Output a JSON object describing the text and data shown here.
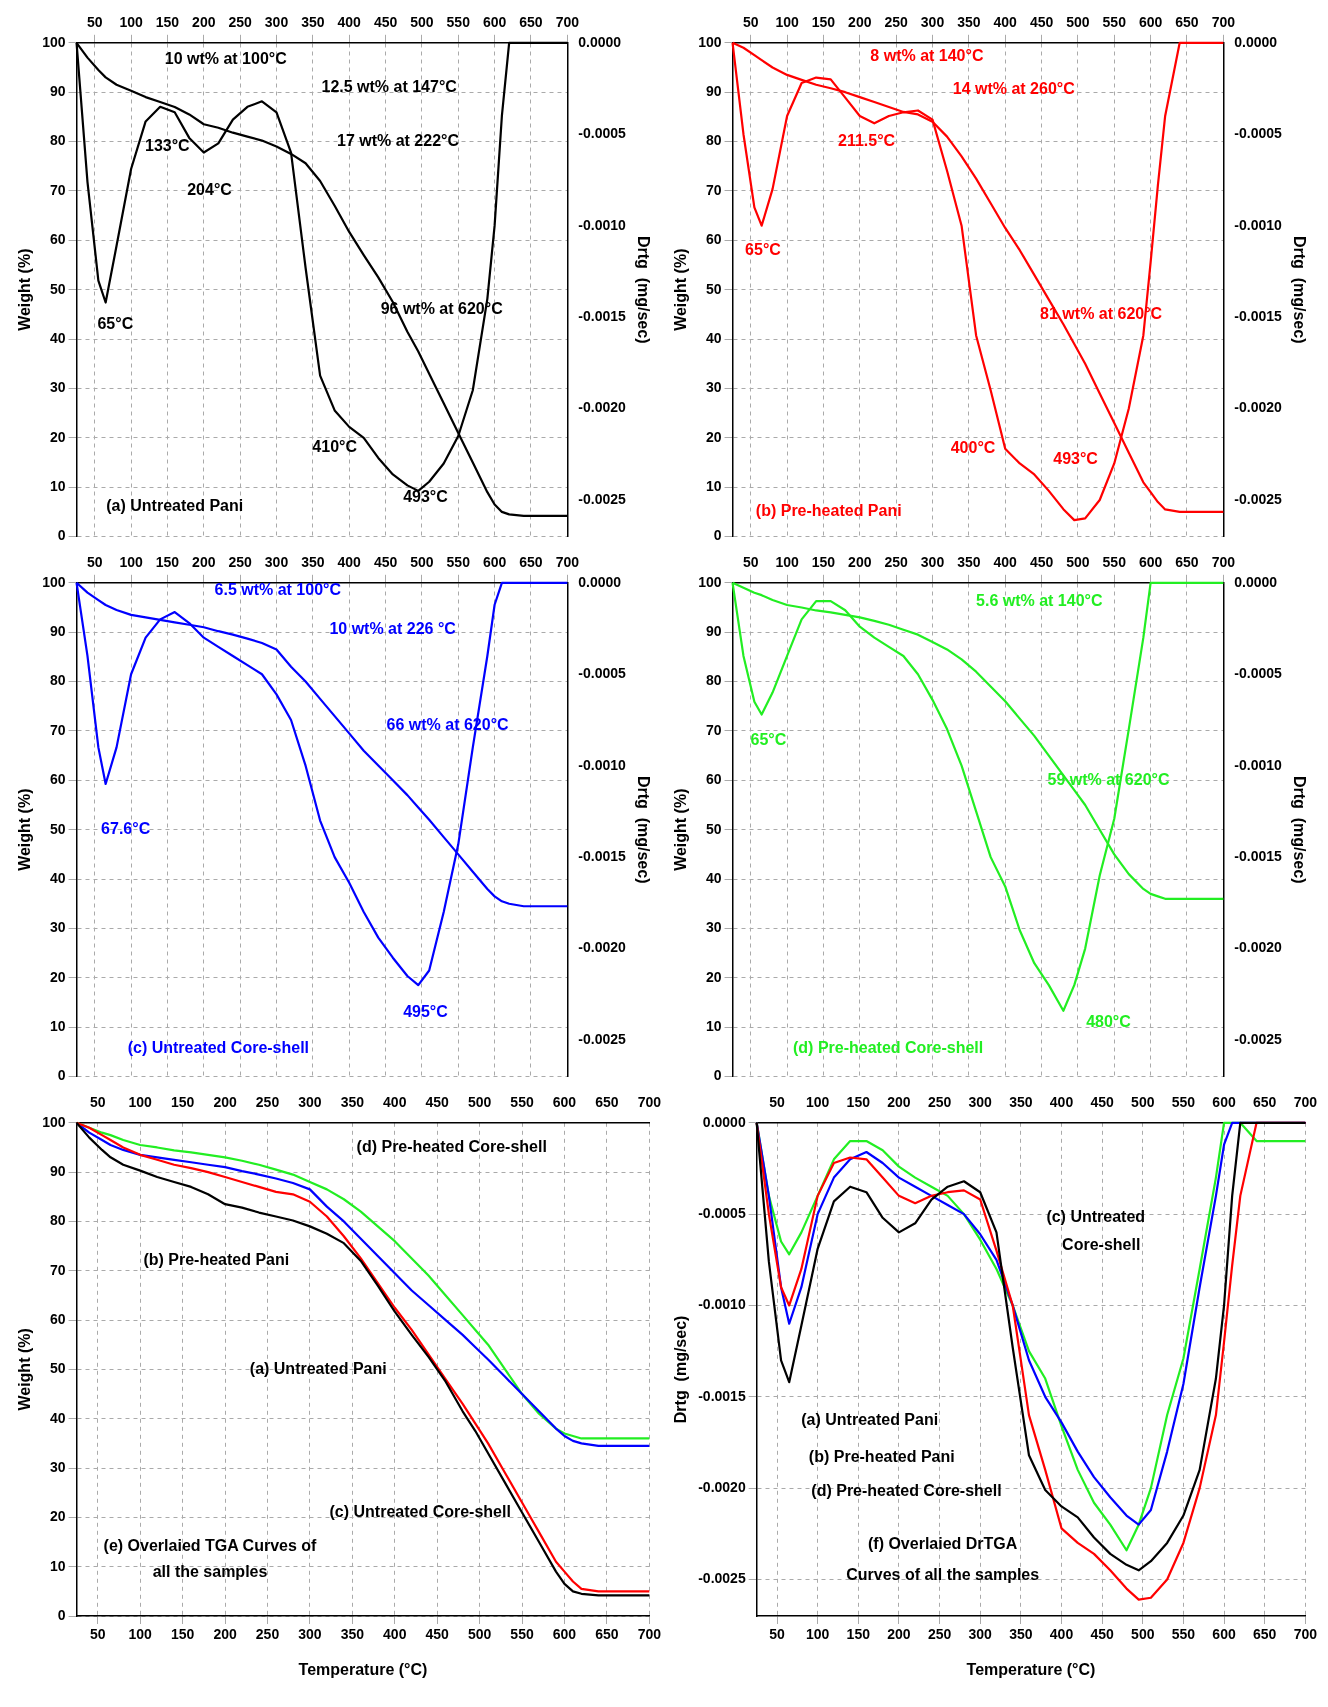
{
  "chart_data": [
    {
      "type": "line",
      "ylabel": "Weight (%)",
      "y2label": "Drtg  (mg/sec)",
      "grid": true,
      "xlim": [
        25,
        700
      ],
      "xticks": [
        50,
        100,
        150,
        200,
        250,
        300,
        350,
        400,
        450,
        500,
        550,
        600,
        650,
        700
      ],
      "ylim": [
        0,
        100
      ],
      "yticks": [
        0,
        10,
        20,
        30,
        40,
        50,
        60,
        70,
        80,
        90,
        100
      ],
      "y2lim": [
        -0.0027,
        0
      ],
      "y2ticks": [
        {
          "value": 0,
          "label": "0.0000"
        },
        {
          "value": -0.0005,
          "label": "-0.0005"
        },
        {
          "value": -0.001,
          "label": "-0.0010"
        },
        {
          "value": -0.0015,
          "label": "-0.0015"
        },
        {
          "value": -0.002,
          "label": "-0.0020"
        },
        {
          "value": -0.0025,
          "label": "-0.0025"
        }
      ],
      "x": [
        25,
        40,
        55,
        65,
        80,
        100,
        120,
        140,
        160,
        180,
        200,
        220,
        240,
        260,
        280,
        300,
        320,
        340,
        360,
        380,
        400,
        420,
        440,
        460,
        480,
        495,
        510,
        530,
        550,
        570,
        590,
        600,
        610,
        620,
        640,
        700
      ],
      "series": [
        {
          "color": "#000000",
          "values": [
            100,
            97,
            94.5,
            93,
            91.5,
            90.3,
            89,
            88,
            87,
            85.5,
            83.5,
            82.8,
            81.8,
            81,
            80.2,
            79,
            77.5,
            75.6,
            72,
            67,
            61.7,
            57,
            52.5,
            47.5,
            41.5,
            37.5,
            33,
            27,
            21,
            15,
            9,
            6.5,
            5,
            4.5,
            4.2,
            4.2
          ]
        },
        {
          "color": "#000000",
          "axis": "y2",
          "values": [
            0,
            -0.00076,
            -0.0013,
            -0.00142,
            -0.00111,
            -0.00069,
            -0.00043,
            -0.00035,
            -0.00038,
            -0.00052,
            -0.0006,
            -0.00055,
            -0.00042,
            -0.00035,
            -0.00032,
            -0.00038,
            -0.0006,
            -0.00123,
            -0.00182,
            -0.00201,
            -0.0021,
            -0.00216,
            -0.00227,
            -0.00236,
            -0.00242,
            -0.00245,
            -0.0024,
            -0.0023,
            -0.00215,
            -0.0019,
            -0.0014,
            -0.001,
            -0.0004,
            0,
            0,
            0
          ]
        }
      ],
      "annotations": [
        "10 wt% at 100°C",
        "12.5 wt% at 147°C",
        "17 wt% at 222°C",
        "96 wt% at 620°C",
        "133°C",
        "204°C",
        "65°C",
        "410°C",
        "493°C",
        "(a) Untreated Pani"
      ]
    },
    {
      "type": "line",
      "ylabel": "Weight (%)",
      "y2label": "Drtg  (mg/sec)",
      "grid": true,
      "xlim": [
        25,
        700
      ],
      "xticks": [
        50,
        100,
        150,
        200,
        250,
        300,
        350,
        400,
        450,
        500,
        550,
        600,
        650,
        700
      ],
      "ylim": [
        0,
        100
      ],
      "yticks": [
        0,
        10,
        20,
        30,
        40,
        50,
        60,
        70,
        80,
        90,
        100
      ],
      "y2lim": [
        -0.0027,
        0
      ],
      "y2ticks": [
        {
          "value": 0,
          "label": "0.0000"
        },
        {
          "value": -0.0005,
          "label": "-0.0005"
        },
        {
          "value": -0.001,
          "label": "-0.0010"
        },
        {
          "value": -0.0015,
          "label": "-0.0015"
        },
        {
          "value": -0.002,
          "label": "-0.0020"
        },
        {
          "value": -0.0025,
          "label": "-0.0025"
        }
      ],
      "x": [
        25,
        40,
        55,
        65,
        80,
        100,
        120,
        140,
        160,
        180,
        200,
        220,
        240,
        260,
        280,
        300,
        320,
        340,
        360,
        380,
        400,
        420,
        440,
        460,
        480,
        495,
        510,
        530,
        550,
        570,
        590,
        600,
        610,
        620,
        640,
        700
      ],
      "series": [
        {
          "color": "#ff0000",
          "values": [
            100,
            99,
            97.5,
            96.5,
            95,
            93.5,
            92.5,
            91.5,
            90.8,
            90,
            89,
            88,
            87,
            86,
            85.5,
            84,
            81,
            77,
            72.5,
            67.5,
            62.5,
            58,
            53,
            48,
            43,
            39,
            35,
            29,
            23,
            17,
            11,
            9,
            7,
            5.5,
            5,
            5
          ]
        },
        {
          "color": "#ff0000",
          "axis": "y2",
          "values": [
            0,
            -0.0005,
            -0.0009,
            -0.001,
            -0.0008,
            -0.0004,
            -0.00022,
            -0.00019,
            -0.0002,
            -0.0003,
            -0.0004,
            -0.00044,
            -0.0004,
            -0.00038,
            -0.00037,
            -0.00042,
            -0.0007,
            -0.001,
            -0.0016,
            -0.0019,
            -0.00222,
            -0.0023,
            -0.00236,
            -0.00245,
            -0.00255,
            -0.00261,
            -0.0026,
            -0.0025,
            -0.0023,
            -0.002,
            -0.0016,
            -0.0012,
            -0.00078,
            -0.0004,
            0,
            0
          ]
        }
      ],
      "annotations": [
        "8 wt% at 140°C",
        "14 wt% at 260°C",
        "211.5°C",
        "65°C",
        "81 wt% at 620°C",
        "400°C",
        "493°C",
        "(b) Pre-heated Pani"
      ]
    },
    {
      "type": "line",
      "ylabel": "Weight (%)",
      "y2label": "Drtg  (mg/sec)",
      "grid": true,
      "xlim": [
        25,
        700
      ],
      "xticks": [
        50,
        100,
        150,
        200,
        250,
        300,
        350,
        400,
        450,
        500,
        550,
        600,
        650,
        700
      ],
      "ylim": [
        0,
        100
      ],
      "yticks": [
        0,
        10,
        20,
        30,
        40,
        50,
        60,
        70,
        80,
        90,
        100
      ],
      "y2lim": [
        -0.0027,
        0
      ],
      "y2ticks": [
        {
          "value": 0,
          "label": "0.0000"
        },
        {
          "value": -0.0005,
          "label": "-0.0005"
        },
        {
          "value": -0.001,
          "label": "-0.0010"
        },
        {
          "value": -0.0015,
          "label": "-0.0015"
        },
        {
          "value": -0.002,
          "label": "-0.0020"
        },
        {
          "value": -0.0025,
          "label": "-0.0025"
        }
      ],
      "x": [
        25,
        40,
        55,
        65,
        80,
        100,
        120,
        140,
        160,
        180,
        200,
        220,
        240,
        260,
        280,
        300,
        320,
        340,
        360,
        380,
        400,
        420,
        440,
        460,
        480,
        495,
        510,
        530,
        550,
        570,
        590,
        600,
        610,
        620,
        640,
        700
      ],
      "series": [
        {
          "color": "#0000ff",
          "values": [
            100,
            98,
            96.5,
            95.5,
            94.5,
            93.5,
            93,
            92.5,
            92,
            91.5,
            91,
            90.2,
            89.5,
            88.7,
            87.8,
            86.5,
            83,
            80,
            76.5,
            73,
            69.5,
            66,
            63,
            60,
            57,
            54.5,
            52,
            48.5,
            45,
            41.5,
            38,
            36.5,
            35.5,
            35,
            34.5,
            34.5
          ]
        },
        {
          "color": "#0000ff",
          "axis": "y2",
          "values": [
            0,
            -0.0004,
            -0.0009,
            -0.0011,
            -0.0009,
            -0.0005,
            -0.0003,
            -0.0002,
            -0.00016,
            -0.00022,
            -0.0003,
            -0.00035,
            -0.0004,
            -0.00045,
            -0.0005,
            -0.00061,
            -0.00075,
            -0.001,
            -0.0013,
            -0.0015,
            -0.00164,
            -0.0018,
            -0.00194,
            -0.00205,
            -0.00215,
            -0.0022,
            -0.00212,
            -0.0018,
            -0.00143,
            -0.0009,
            -0.0004,
            -0.00012,
            0,
            0,
            0,
            0
          ]
        }
      ],
      "annotations": [
        "6.5 wt% at 100°C",
        "10 wt% at 226 °C",
        "66 wt% at 620°C",
        "67.6°C",
        "495°C",
        "(c) Untreated Core-shell"
      ]
    },
    {
      "type": "line",
      "ylabel": "Weight (%)",
      "y2label": "Drtg  (mg/sec)",
      "grid": true,
      "xlim": [
        25,
        700
      ],
      "xticks": [
        50,
        100,
        150,
        200,
        250,
        300,
        350,
        400,
        450,
        500,
        550,
        600,
        650,
        700
      ],
      "ylim": [
        0,
        100
      ],
      "yticks": [
        0,
        10,
        20,
        30,
        40,
        50,
        60,
        70,
        80,
        90,
        100
      ],
      "y2lim": [
        -0.0027,
        0
      ],
      "y2ticks": [
        {
          "value": 0,
          "label": "0.0000"
        },
        {
          "value": -0.0005,
          "label": "-0.0005"
        },
        {
          "value": -0.001,
          "label": "-0.0010"
        },
        {
          "value": -0.0015,
          "label": "-0.0015"
        },
        {
          "value": -0.002,
          "label": "-0.0020"
        },
        {
          "value": -0.0025,
          "label": "-0.0025"
        }
      ],
      "x": [
        25,
        40,
        55,
        65,
        80,
        100,
        120,
        140,
        160,
        180,
        200,
        220,
        240,
        260,
        280,
        300,
        320,
        340,
        360,
        380,
        400,
        420,
        440,
        460,
        480,
        495,
        510,
        530,
        550,
        570,
        590,
        600,
        610,
        620,
        640,
        700
      ],
      "series": [
        {
          "color": "#22ee22",
          "values": [
            100,
            99,
            98,
            97.5,
            96.5,
            95.5,
            95,
            94.4,
            94,
            93.5,
            93,
            92.3,
            91.5,
            90.5,
            89.5,
            88,
            86.5,
            84.5,
            82,
            79,
            76,
            72.5,
            69,
            65,
            61,
            58,
            55,
            50,
            45,
            41,
            38,
            37,
            36.5,
            36,
            36,
            36
          ]
        },
        {
          "color": "#22ee22",
          "axis": "y2",
          "values": [
            0,
            -0.0004,
            -0.00065,
            -0.00072,
            -0.0006,
            -0.0004,
            -0.0002,
            -0.0001,
            -0.0001,
            -0.00015,
            -0.00024,
            -0.0003,
            -0.00035,
            -0.0004,
            -0.0005,
            -0.00064,
            -0.0008,
            -0.001,
            -0.00125,
            -0.0015,
            -0.00166,
            -0.0019,
            -0.00208,
            -0.0022,
            -0.00234,
            -0.0022,
            -0.002,
            -0.0016,
            -0.00129,
            -0.0008,
            -0.0003,
            0,
            0,
            0,
            0,
            0
          ]
        }
      ],
      "annotations": [
        "5.6 wt% at 140°C",
        "65°C",
        "59 wt% at 620°C",
        "480°C",
        "(d) Pre-heated Core-shell"
      ]
    },
    {
      "type": "line",
      "ylabel": "Weight (%)",
      "xlabel": "Temperature (°C)",
      "grid": true,
      "xlim": [
        25,
        700
      ],
      "xticks": [
        50,
        100,
        150,
        200,
        250,
        300,
        350,
        400,
        450,
        500,
        550,
        600,
        650,
        700
      ],
      "x2lim": [
        25,
        700
      ],
      "x2ticks": [
        50,
        100,
        150,
        200,
        250,
        300,
        350,
        400,
        450,
        500,
        550,
        600,
        650,
        700
      ],
      "ylim": [
        0,
        100
      ],
      "yticks": [
        0,
        10,
        20,
        30,
        40,
        50,
        60,
        70,
        80,
        90,
        100
      ],
      "x": [
        25,
        40,
        55,
        65,
        80,
        100,
        120,
        140,
        160,
        180,
        200,
        220,
        240,
        260,
        280,
        300,
        320,
        340,
        360,
        380,
        400,
        420,
        440,
        460,
        480,
        495,
        510,
        530,
        550,
        570,
        590,
        600,
        610,
        620,
        640,
        700
      ],
      "series": [
        {
          "color": "#000000",
          "values": [
            100,
            97,
            94.5,
            93,
            91.5,
            90.3,
            89,
            88,
            87,
            85.5,
            83.5,
            82.8,
            81.8,
            81,
            80.2,
            79,
            77.5,
            75.6,
            72,
            67,
            61.7,
            57,
            52.5,
            47.5,
            41.5,
            37.5,
            33,
            27,
            21,
            15,
            9,
            6.5,
            5,
            4.5,
            4.2,
            4.2
          ]
        },
        {
          "color": "#ff0000",
          "values": [
            100,
            99,
            97.5,
            96.5,
            95,
            93.5,
            92.5,
            91.5,
            90.8,
            90,
            89,
            88,
            87,
            86,
            85.5,
            84,
            81,
            77,
            72.5,
            67.5,
            62.5,
            58,
            53,
            48,
            43,
            39,
            35,
            29,
            23,
            17,
            11,
            9,
            7,
            5.5,
            5,
            5
          ]
        },
        {
          "color": "#0000ff",
          "values": [
            100,
            98,
            96.5,
            95.5,
            94.5,
            93.5,
            93,
            92.5,
            92,
            91.5,
            91,
            90.2,
            89.5,
            88.7,
            87.8,
            86.5,
            83,
            80,
            76.5,
            73,
            69.5,
            66,
            63,
            60,
            57,
            54.5,
            52,
            48.5,
            45,
            41.5,
            38,
            36.5,
            35.5,
            35,
            34.5,
            34.5
          ]
        },
        {
          "color": "#22ee22",
          "values": [
            100,
            99,
            98,
            97.5,
            96.5,
            95.5,
            95,
            94.4,
            94,
            93.5,
            93,
            92.3,
            91.5,
            90.5,
            89.5,
            88,
            86.5,
            84.5,
            82,
            79,
            76,
            72.5,
            69,
            65,
            61,
            58,
            55,
            50,
            45,
            41,
            38,
            37,
            36.5,
            36,
            36,
            36
          ]
        }
      ],
      "annotations": [
        "(d) Pre-heated Core-shell",
        "(b) Pre-heated Pani",
        "(a) Untreated Pani",
        "(c) Untreated Core-shell",
        "(e) Overlaied TGA Curves of",
        "all the samples"
      ]
    },
    {
      "type": "line",
      "ylabel": "Drtg  (mg/sec)",
      "xlabel": "Temperature (°C)",
      "grid": true,
      "xlim": [
        25,
        700
      ],
      "xticks": [
        50,
        100,
        150,
        200,
        250,
        300,
        350,
        400,
        450,
        500,
        550,
        600,
        650,
        700
      ],
      "x2lim": [
        25,
        700
      ],
      "x2ticks": [
        50,
        100,
        150,
        200,
        250,
        300,
        350,
        400,
        450,
        500,
        550,
        600,
        650,
        700
      ],
      "ylim": [
        -0.0027,
        0
      ],
      "yticks": [
        {
          "value": 0,
          "label": "0.0000"
        },
        {
          "value": -0.0005,
          "label": "-0.0005"
        },
        {
          "value": -0.001,
          "label": "-0.0010"
        },
        {
          "value": -0.0015,
          "label": "-0.0015"
        },
        {
          "value": -0.002,
          "label": "-0.0020"
        },
        {
          "value": -0.0025,
          "label": "-0.0025"
        }
      ],
      "x": [
        25,
        40,
        55,
        65,
        80,
        100,
        120,
        140,
        160,
        180,
        200,
        220,
        240,
        260,
        280,
        300,
        320,
        340,
        360,
        380,
        400,
        420,
        440,
        460,
        480,
        495,
        510,
        530,
        550,
        570,
        590,
        600,
        610,
        620,
        640,
        700
      ],
      "series": [
        {
          "color": "#000000",
          "values": [
            0,
            -0.00076,
            -0.0013,
            -0.00142,
            -0.00111,
            -0.00069,
            -0.00043,
            -0.00035,
            -0.00038,
            -0.00052,
            -0.0006,
            -0.00055,
            -0.00042,
            -0.00035,
            -0.00032,
            -0.00038,
            -0.0006,
            -0.00123,
            -0.00182,
            -0.00201,
            -0.0021,
            -0.00216,
            -0.00227,
            -0.00236,
            -0.00242,
            -0.00245,
            -0.0024,
            -0.0023,
            -0.00215,
            -0.0019,
            -0.0014,
            -0.001,
            -0.0004,
            0,
            0,
            0
          ]
        },
        {
          "color": "#ff0000",
          "values": [
            0,
            -0.0005,
            -0.0009,
            -0.001,
            -0.0008,
            -0.0004,
            -0.00022,
            -0.00019,
            -0.0002,
            -0.0003,
            -0.0004,
            -0.00044,
            -0.0004,
            -0.00038,
            -0.00037,
            -0.00042,
            -0.0007,
            -0.001,
            -0.0016,
            -0.0019,
            -0.00222,
            -0.0023,
            -0.00236,
            -0.00245,
            -0.00255,
            -0.00261,
            -0.0026,
            -0.0025,
            -0.0023,
            -0.002,
            -0.0016,
            -0.0012,
            -0.00078,
            -0.0004,
            0,
            0
          ]
        },
        {
          "color": "#0000ff",
          "values": [
            0,
            -0.0004,
            -0.0009,
            -0.0011,
            -0.0009,
            -0.0005,
            -0.0003,
            -0.0002,
            -0.00016,
            -0.00022,
            -0.0003,
            -0.00035,
            -0.0004,
            -0.00045,
            -0.0005,
            -0.00061,
            -0.00075,
            -0.001,
            -0.0013,
            -0.0015,
            -0.00164,
            -0.0018,
            -0.00194,
            -0.00205,
            -0.00215,
            -0.0022,
            -0.00212,
            -0.0018,
            -0.00143,
            -0.0009,
            -0.0004,
            -0.00012,
            0,
            0,
            0,
            0
          ]
        },
        {
          "color": "#22ee22",
          "values": [
            0,
            -0.0004,
            -0.00065,
            -0.00072,
            -0.0006,
            -0.0004,
            -0.0002,
            -0.0001,
            -0.0001,
            -0.00015,
            -0.00024,
            -0.0003,
            -0.00035,
            -0.0004,
            -0.0005,
            -0.00064,
            -0.0008,
            -0.001,
            -0.00125,
            -0.0014,
            -0.00166,
            -0.0019,
            -0.00208,
            -0.0022,
            -0.00234,
            -0.0022,
            -0.002,
            -0.0016,
            -0.00129,
            -0.0008,
            -0.0003,
            0,
            0,
            0,
            -0.0001,
            -0.0001
          ]
        }
      ],
      "annotations": [
        "(c) Untreated",
        "Core-shell",
        "(a) Untreated Pani",
        "(b) Pre-heated Pani",
        "(d) Pre-heated Core-shell",
        "(f) Overlaied DrTGA",
        "Curves of all the samples"
      ]
    }
  ]
}
